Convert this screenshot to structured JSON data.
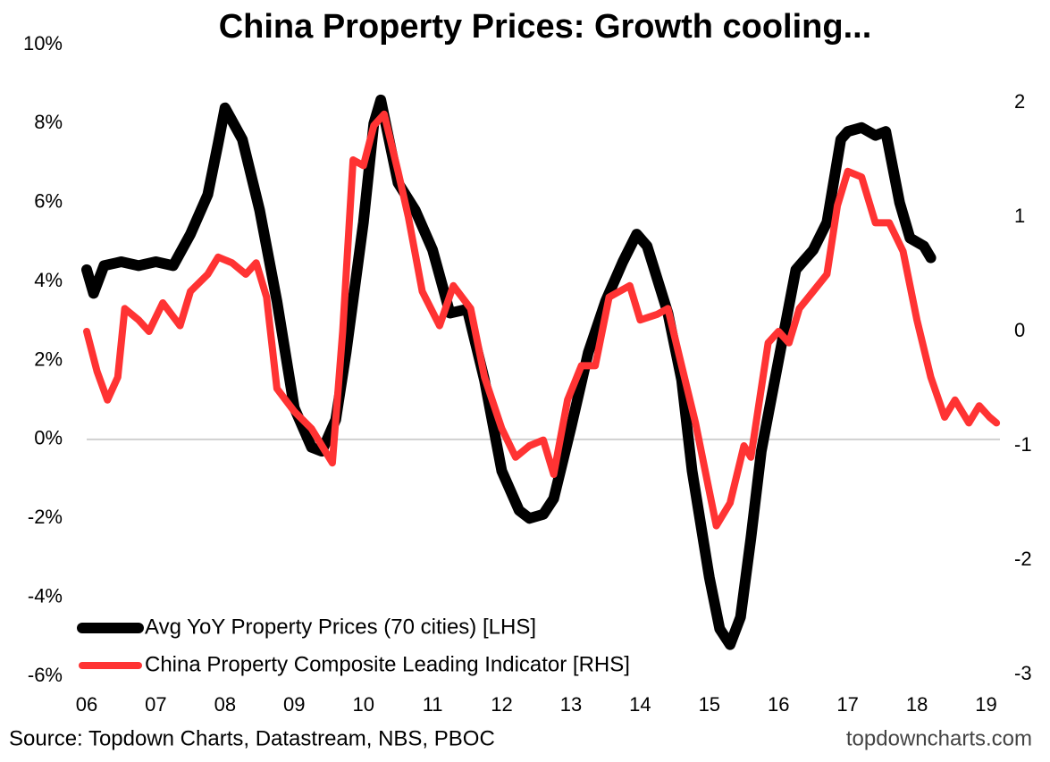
{
  "chart_data": {
    "type": "line",
    "title": "China Property Prices: Growth cooling...",
    "source": "Source: Topdown Charts, Datastream, NBS, PBOC",
    "watermark": "topdowncharts.com",
    "xlim": [
      2006,
      2019.2
    ],
    "xticks": [
      {
        "value": 2006,
        "label": "06"
      },
      {
        "value": 2007,
        "label": "07"
      },
      {
        "value": 2008,
        "label": "08"
      },
      {
        "value": 2009,
        "label": "09"
      },
      {
        "value": 2010,
        "label": "10"
      },
      {
        "value": 2011,
        "label": "11"
      },
      {
        "value": 2012,
        "label": "12"
      },
      {
        "value": 2013,
        "label": "13"
      },
      {
        "value": 2014,
        "label": "14"
      },
      {
        "value": 2015,
        "label": "15"
      },
      {
        "value": 2016,
        "label": "16"
      },
      {
        "value": 2017,
        "label": "17"
      },
      {
        "value": 2018,
        "label": "18"
      },
      {
        "value": 2019,
        "label": "19"
      }
    ],
    "ylim": [
      -6,
      10
    ],
    "yticks": [
      {
        "value": -6,
        "label": "-6%"
      },
      {
        "value": -4,
        "label": "-4%"
      },
      {
        "value": -2,
        "label": "-2%"
      },
      {
        "value": 0,
        "label": "0%"
      },
      {
        "value": 2,
        "label": "2%"
      },
      {
        "value": 4,
        "label": "4%"
      },
      {
        "value": 6,
        "label": "6%"
      },
      {
        "value": 8,
        "label": "8%"
      },
      {
        "value": 10,
        "label": "10%"
      }
    ],
    "y2lim": [
      -3.0,
      2.4
    ],
    "y2ticks": [
      -3,
      -2,
      -1,
      0,
      1,
      2
    ],
    "zero_line": true,
    "legend": "lower left",
    "series": [
      {
        "name": "Avg YoY Property Prices (70 cities) [LHS]",
        "color": "#000000",
        "axis": "y",
        "x": [
          2006.0,
          2006.1,
          2006.25,
          2006.5,
          2006.75,
          2007.0,
          2007.25,
          2007.5,
          2007.75,
          2007.9,
          2008.0,
          2008.25,
          2008.5,
          2008.75,
          2009.0,
          2009.25,
          2009.4,
          2009.6,
          2009.75,
          2010.0,
          2010.15,
          2010.25,
          2010.5,
          2010.75,
          2011.0,
          2011.25,
          2011.5,
          2011.75,
          2012.0,
          2012.25,
          2012.4,
          2012.6,
          2012.75,
          2013.0,
          2013.25,
          2013.5,
          2013.75,
          2013.95,
          2014.1,
          2014.4,
          2014.6,
          2014.75,
          2015.0,
          2015.15,
          2015.3,
          2015.45,
          2015.6,
          2015.75,
          2016.0,
          2016.25,
          2016.5,
          2016.7,
          2016.9,
          2017.0,
          2017.2,
          2017.4,
          2017.55,
          2017.75,
          2017.9,
          2018.1,
          2018.2
        ],
        "values": [
          4.3,
          3.7,
          4.4,
          4.5,
          4.4,
          4.5,
          4.4,
          5.2,
          6.2,
          7.5,
          8.4,
          7.6,
          5.8,
          3.5,
          0.8,
          -0.2,
          -0.3,
          0.5,
          2.2,
          5.5,
          8.0,
          8.6,
          6.5,
          5.8,
          4.8,
          3.2,
          3.3,
          1.5,
          -0.8,
          -1.8,
          -2.0,
          -1.9,
          -1.5,
          0.3,
          2.2,
          3.5,
          4.5,
          5.2,
          4.9,
          3.2,
          1.5,
          -0.8,
          -3.5,
          -4.8,
          -5.2,
          -4.5,
          -2.5,
          -0.3,
          2.0,
          4.3,
          4.8,
          5.5,
          7.6,
          7.8,
          7.9,
          7.7,
          7.8,
          6.0,
          5.1,
          4.9,
          4.6
        ]
      },
      {
        "name": "China Property Composite Leading Indicator [RHS]",
        "color": "#ff3333",
        "axis": "y2",
        "x": [
          2006.0,
          2006.15,
          2006.3,
          2006.45,
          2006.55,
          2006.75,
          2006.9,
          2007.1,
          2007.35,
          2007.5,
          2007.75,
          2007.9,
          2008.1,
          2008.3,
          2008.45,
          2008.6,
          2008.75,
          2009.0,
          2009.25,
          2009.4,
          2009.55,
          2009.7,
          2009.85,
          2010.0,
          2010.15,
          2010.3,
          2010.5,
          2010.65,
          2010.85,
          2011.1,
          2011.3,
          2011.55,
          2011.75,
          2012.0,
          2012.2,
          2012.4,
          2012.6,
          2012.75,
          2012.95,
          2013.15,
          2013.35,
          2013.55,
          2013.85,
          2014.0,
          2014.25,
          2014.4,
          2014.6,
          2014.8,
          2015.0,
          2015.1,
          2015.3,
          2015.5,
          2015.6,
          2015.85,
          2016.0,
          2016.15,
          2016.3,
          2016.5,
          2016.7,
          2016.85,
          2017.0,
          2017.2,
          2017.4,
          2017.6,
          2017.8,
          2018.0,
          2018.2,
          2018.4,
          2018.55,
          2018.75,
          2018.9,
          2019.05,
          2019.15
        ],
        "values": [
          0.0,
          -0.35,
          -0.6,
          -0.4,
          0.2,
          0.1,
          0.0,
          0.25,
          0.05,
          0.35,
          0.5,
          0.65,
          0.6,
          0.5,
          0.6,
          0.3,
          -0.5,
          -0.7,
          -0.85,
          -1.0,
          -1.15,
          0.0,
          1.5,
          1.45,
          1.8,
          1.9,
          1.4,
          1.0,
          0.35,
          0.05,
          0.4,
          0.2,
          -0.4,
          -0.85,
          -1.1,
          -1.0,
          -0.95,
          -1.25,
          -0.6,
          -0.3,
          -0.3,
          0.3,
          0.4,
          0.1,
          0.15,
          0.2,
          -0.3,
          -0.8,
          -1.4,
          -1.7,
          -1.5,
          -1.0,
          -1.1,
          -0.1,
          0.0,
          -0.1,
          0.2,
          0.35,
          0.5,
          1.1,
          1.4,
          1.35,
          0.95,
          0.95,
          0.7,
          0.1,
          -0.4,
          -0.75,
          -0.6,
          -0.8,
          -0.65,
          -0.75,
          -0.8
        ]
      }
    ]
  }
}
